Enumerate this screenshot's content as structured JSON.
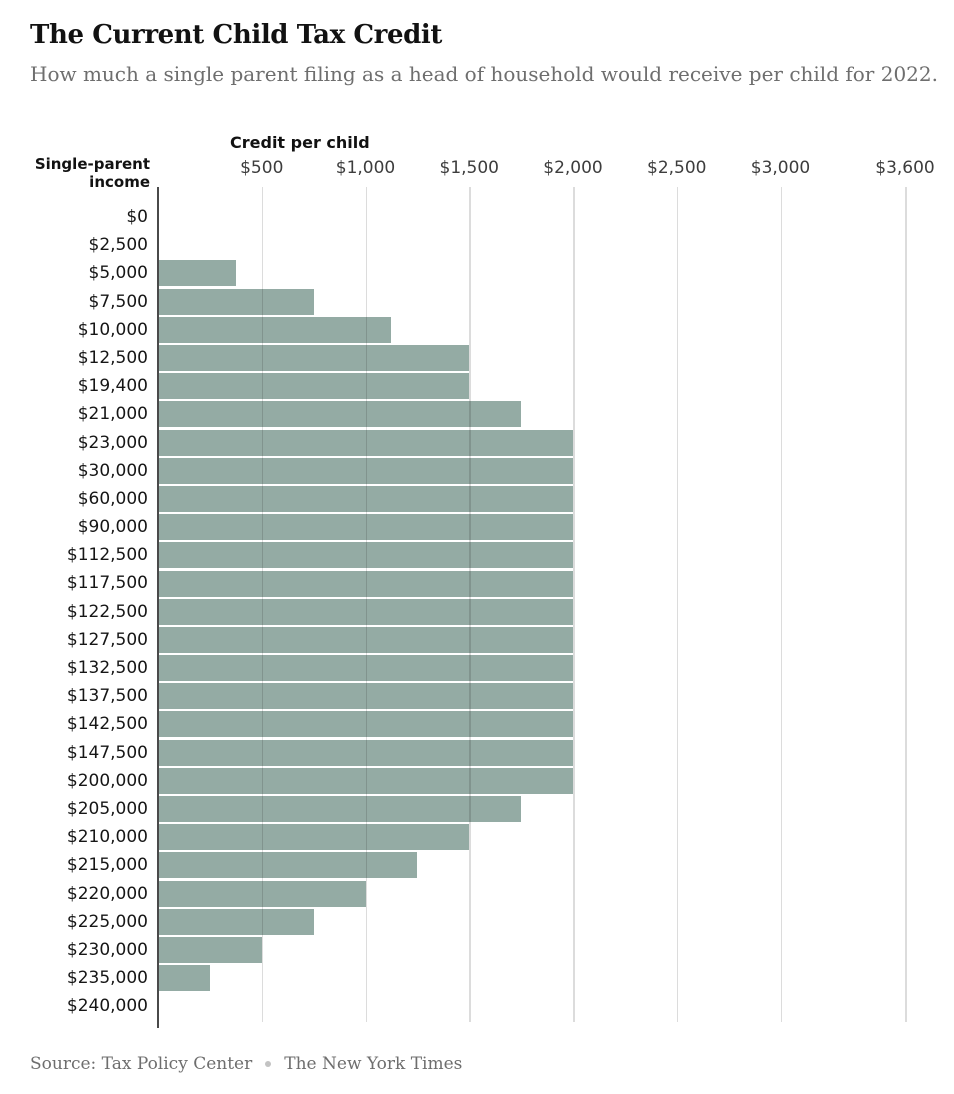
{
  "header": {
    "title": "The Current Child Tax Credit",
    "subtitle": "How much a single parent filing as a head of household would receive per child for 2022."
  },
  "chart_data": {
    "type": "bar",
    "orientation": "horizontal",
    "title": "The Current Child Tax Credit",
    "x_axis_title": "Credit per child",
    "y_axis_title": "Single-parent income",
    "y_axis_title_lines": [
      "Single-parent",
      "income"
    ],
    "xlim": [
      0,
      3600
    ],
    "grid": true,
    "legend": "none",
    "x_ticks": [
      {
        "label": "$500",
        "value": 500
      },
      {
        "label": "$1,000",
        "value": 1000
      },
      {
        "label": "$1,500",
        "value": 1500
      },
      {
        "label": "$2,000",
        "value": 2000
      },
      {
        "label": "$2,500",
        "value": 2500
      },
      {
        "label": "$3,000",
        "value": 3000
      },
      {
        "label": "$3,600",
        "value": 3600
      }
    ],
    "categories": [
      "$0",
      "$2,500",
      "$5,000",
      "$7,500",
      "$10,000",
      "$12,500",
      "$19,400",
      "$21,000",
      "$23,000",
      "$30,000",
      "$60,000",
      "$90,000",
      "$112,500",
      "$117,500",
      "$122,500",
      "$127,500",
      "$132,500",
      "$137,500",
      "$142,500",
      "$147,500",
      "$200,000",
      "$205,000",
      "$210,000",
      "$215,000",
      "$220,000",
      "$225,000",
      "$230,000",
      "$235,000",
      "$240,000"
    ],
    "values": [
      0,
      0,
      375,
      750,
      1125,
      1500,
      1500,
      1750,
      2000,
      2000,
      2000,
      2000,
      2000,
      2000,
      2000,
      2000,
      2000,
      2000,
      2000,
      2000,
      2000,
      1750,
      1500,
      1250,
      1000,
      750,
      500,
      250,
      0
    ],
    "colors": {
      "bar": "#94aba4",
      "gridline": "rgba(18,18,18,0.15)",
      "axis_line": "#4a4a4a"
    }
  },
  "footer": {
    "source": "Source: Tax Policy Center",
    "separator": "dot",
    "credit": "The New York Times"
  }
}
